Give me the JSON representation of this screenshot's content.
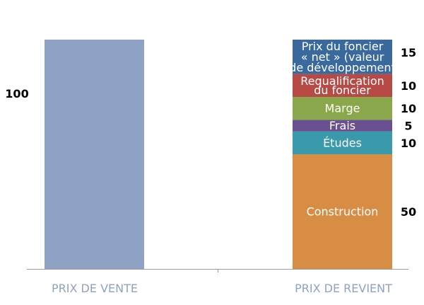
{
  "chart_data": {
    "type": "bar",
    "stacked": true,
    "categories": [
      "PRIX DE VENTE",
      "PRIX DE REVIENT"
    ],
    "ylim": [
      0,
      100
    ],
    "grid": false,
    "bars": [
      {
        "category": "PRIX DE VENTE",
        "total": 100,
        "total_label": "100",
        "color": "#8fa2c6",
        "segments": []
      },
      {
        "category": "PRIX DE REVIENT",
        "total": 100,
        "segments": [
          {
            "label": "Construction",
            "value": 50,
            "value_label": "50",
            "color": "#d88d44"
          },
          {
            "label": "Études",
            "value": 10,
            "value_label": "10",
            "color": "#3a9aab"
          },
          {
            "label": "Frais",
            "value": 5,
            "value_label": "5",
            "color": "#6a4f91"
          },
          {
            "label": "Marge",
            "value": 10,
            "value_label": "10",
            "color": "#8aa84b"
          },
          {
            "label": "Requalification du foncier",
            "value": 10,
            "value_label": "10",
            "color": "#b84a46"
          },
          {
            "label": "Prix du foncier « net » (valeur de développement",
            "value": 15,
            "value_label": "15",
            "color": "#3a6a9d"
          }
        ]
      }
    ]
  },
  "axis_color": "#9a9a9a"
}
